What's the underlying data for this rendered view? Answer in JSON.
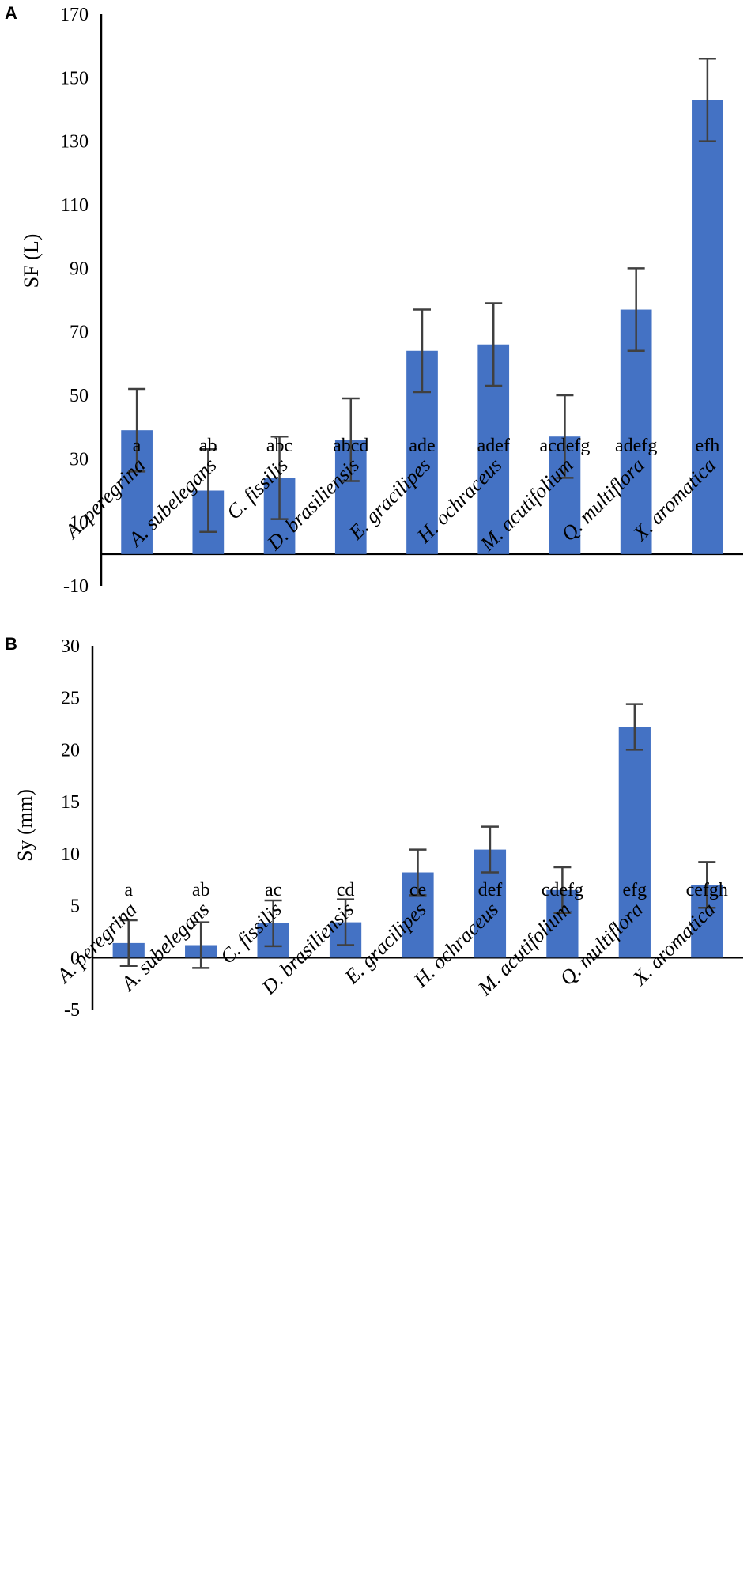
{
  "chart_data": [
    {
      "type": "bar",
      "panel": "A",
      "ylabel": "SF (L)",
      "xlabel": "",
      "ylim": [
        -10,
        170
      ],
      "yticks": [
        -10,
        10,
        30,
        50,
        70,
        90,
        110,
        130,
        150,
        170
      ],
      "categories": [
        "A. peregrina",
        "A. subelegans",
        "C. fissilis",
        "D. brasiliensis",
        "E. gracilipes",
        "H. ochraceus",
        "M. acutifolium",
        "Q. multiflora",
        "X. aromatica"
      ],
      "group_letters": [
        "a",
        "ab",
        "abc",
        "abcd",
        "ade",
        "adef",
        "acdefg",
        "adefg",
        "efh"
      ],
      "values": [
        39,
        20,
        24,
        36,
        64,
        66,
        37,
        77,
        143
      ],
      "errors": [
        13,
        13,
        13,
        13,
        13,
        13,
        13,
        13,
        13
      ],
      "bar_color": "#4472C4"
    },
    {
      "type": "bar",
      "panel": "B",
      "ylabel": "Sy (mm)",
      "xlabel": "",
      "ylim": [
        -5,
        30
      ],
      "yticks": [
        -5,
        0,
        5,
        10,
        15,
        20,
        25,
        30
      ],
      "categories": [
        "A. peregrina",
        "A. subelegans",
        "C. fissilis",
        "D. brasiliensis",
        "E. gracilipes",
        "H. ochraceus",
        "M. acutifolium",
        "Q. multiflora",
        "X. aromatica"
      ],
      "group_letters": [
        "a",
        "ab",
        "ac",
        "cd",
        "ce",
        "def",
        "cdefg",
        "efg",
        "cefgh"
      ],
      "values": [
        1.4,
        1.2,
        3.3,
        3.4,
        8.2,
        10.4,
        6.5,
        22.2,
        7.0
      ],
      "errors": [
        2.2,
        2.2,
        2.2,
        2.2,
        2.2,
        2.2,
        2.2,
        2.2,
        2.2
      ],
      "bar_color": "#4472C4"
    }
  ]
}
